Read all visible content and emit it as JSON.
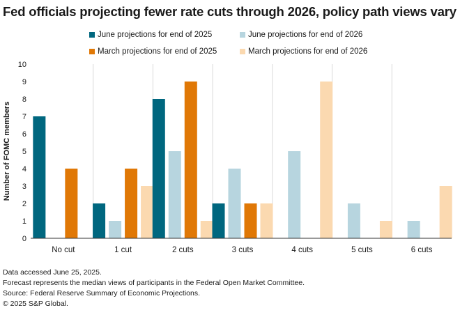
{
  "chart_data": {
    "type": "bar",
    "title": "Fed officials projecting fewer rate cuts through 2026, policy path views vary",
    "ylabel": "Number of FOMC members",
    "xlabel": "",
    "ylim": [
      0,
      10
    ],
    "yticks": [
      0,
      1,
      2,
      3,
      4,
      5,
      6,
      7,
      8,
      9,
      10
    ],
    "grid": "vertical separators between categories",
    "legend_placement": "top",
    "categories": [
      "No cut",
      "1 cut",
      "2 cuts",
      "3 cuts",
      "4 cuts",
      "5 cuts",
      "6 cuts"
    ],
    "series": [
      {
        "name": "June projections for end of 2025",
        "color": "#00677f",
        "values": [
          7,
          2,
          8,
          2,
          0,
          0,
          0
        ]
      },
      {
        "name": "June projections for end of 2026",
        "color": "#b7d5df",
        "values": [
          0,
          1,
          5,
          4,
          5,
          2,
          1
        ]
      },
      {
        "name": "March projections for end of 2025",
        "color": "#e07806",
        "values": [
          4,
          4,
          9,
          2,
          0,
          0,
          0
        ]
      },
      {
        "name": "March projections for end of 2026",
        "color": "#fbd9b0",
        "values": [
          0,
          3,
          1,
          2,
          9,
          1,
          3
        ]
      }
    ]
  },
  "footnotes": [
    "Data accessed June 25, 2025.",
    "Forecast represents the median views of participants in the Federal Open Market Committee.",
    "Source: Federal Reserve Summary of Economic Projections.",
    "© 2025 S&P Global."
  ]
}
